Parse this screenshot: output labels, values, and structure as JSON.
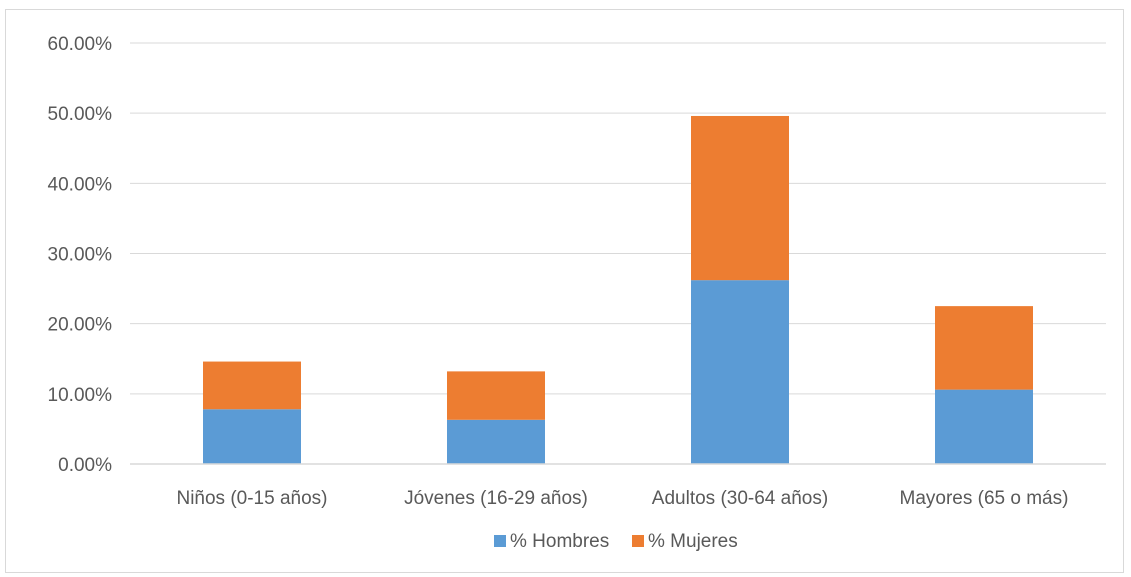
{
  "chart_data": {
    "type": "bar",
    "stacked": true,
    "categories": [
      "Niños (0-15 años)",
      "Jóvenes (16-29 años)",
      "Adultos (30-64 años)",
      "Mayores (65 o más)"
    ],
    "series": [
      {
        "name": "% Hombres",
        "color": "#5b9bd5",
        "values": [
          7.8,
          6.3,
          26.2,
          10.6
        ]
      },
      {
        "name": "% Mujeres",
        "color": "#ed7d31",
        "values": [
          6.8,
          6.9,
          23.4,
          11.9
        ]
      }
    ],
    "ylim": [
      0,
      60
    ],
    "yticks": [
      0,
      10,
      20,
      30,
      40,
      50,
      60
    ],
    "ytick_labels": [
      "0.00%",
      "10.00%",
      "20.00%",
      "30.00%",
      "40.00%",
      "50.00%",
      "60.00%"
    ],
    "grid": true,
    "legend_position": "bottom",
    "title": "",
    "xlabel": "",
    "ylabel": ""
  }
}
